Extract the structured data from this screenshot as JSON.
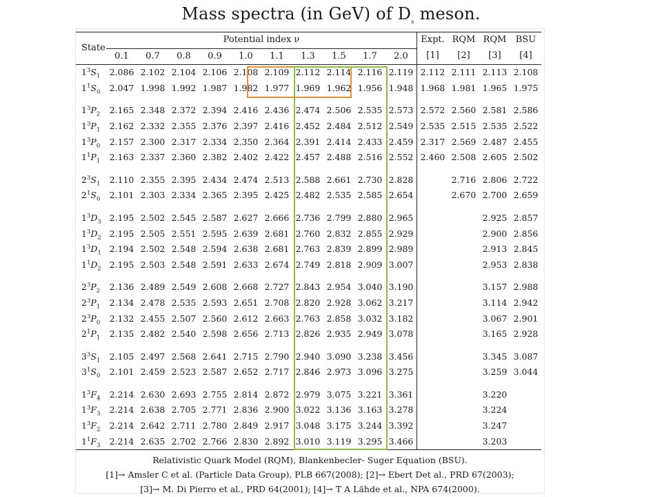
{
  "title": "Mass spectra (in GeV) of D",
  "title_sub": "s",
  "title_tail": " meson.",
  "header": {
    "state": "State",
    "potential": "Potential index ν",
    "nu_values": [
      "0.1",
      "0.7",
      "0.8",
      "0.9",
      "1.0",
      "1.1",
      "1.3",
      "1.5",
      "1.7",
      "2.0"
    ],
    "extra_cols": [
      {
        "top": "Expt.",
        "bot": "[1]"
      },
      {
        "top": "RQM",
        "bot": "[2]"
      },
      {
        "top": "RQM",
        "bot": "[3]"
      },
      {
        "top": "BSU",
        "bot": "[4]"
      }
    ]
  },
  "groups": [
    [
      {
        "n": "1",
        "s": "3",
        "l": "S",
        "j": "1",
        "v": [
          "2.086",
          "2.102",
          "2.104",
          "2.106",
          "2.108",
          "2.109",
          "2.112",
          "2.114",
          "2.116",
          "2.119",
          "2.112",
          "2.111",
          "2.113",
          "2.108"
        ]
      },
      {
        "n": "1",
        "s": "1",
        "l": "S",
        "j": "0",
        "v": [
          "2.047",
          "1.998",
          "1.992",
          "1.987",
          "1.982",
          "1.977",
          "1.969",
          "1.962",
          "1.956",
          "1.948",
          "1.968",
          "1.981",
          "1.965",
          "1.975"
        ]
      }
    ],
    [
      {
        "n": "1",
        "s": "3",
        "l": "P",
        "j": "2",
        "v": [
          "2.165",
          "2.348",
          "2.372",
          "2.394",
          "2.416",
          "2.436",
          "2.474",
          "2.506",
          "2.535",
          "2.573",
          "2.572",
          "2.560",
          "2.581",
          "2.586"
        ]
      },
      {
        "n": "1",
        "s": "3",
        "l": "P",
        "j": "1",
        "v": [
          "2.162",
          "2.332",
          "2.355",
          "2.376",
          "2.397",
          "2.416",
          "2.452",
          "2.484",
          "2.512",
          "2.549",
          "2.535",
          "2.515",
          "2.535",
          "2.522"
        ]
      },
      {
        "n": "1",
        "s": "3",
        "l": "P",
        "j": "0",
        "v": [
          "2.157",
          "2.300",
          "2.317",
          "2.334",
          "2.350",
          "2.364",
          "2.391",
          "2.414",
          "2.433",
          "2.459",
          "2.317",
          "2.569",
          "2.487",
          "2.455"
        ]
      },
      {
        "n": "1",
        "s": "1",
        "l": "P",
        "j": "1",
        "v": [
          "2.163",
          "2.337",
          "2.360",
          "2.382",
          "2.402",
          "2.422",
          "2.457",
          "2.488",
          "2.516",
          "2.552",
          "2.460",
          "2.508",
          "2.605",
          "2.502"
        ]
      }
    ],
    [
      {
        "n": "2",
        "s": "3",
        "l": "S",
        "j": "1",
        "v": [
          "2.110",
          "2.355",
          "2.395",
          "2.434",
          "2.474",
          "2.513",
          "2.588",
          "2.661",
          "2.730",
          "2.828",
          "",
          "2.716",
          "2.806",
          "2.722"
        ]
      },
      {
        "n": "2",
        "s": "1",
        "l": "S",
        "j": "0",
        "v": [
          "2.101",
          "2.303",
          "2.334",
          "2.365",
          "2.395",
          "2.425",
          "2.482",
          "2.535",
          "2.585",
          "2.654",
          "",
          "2.670",
          "2.700",
          "2.659"
        ]
      }
    ],
    [
      {
        "n": "1",
        "s": "3",
        "l": "D",
        "j": "3",
        "v": [
          "2.195",
          "2.502",
          "2.545",
          "2.587",
          "2.627",
          "2.666",
          "2.736",
          "2.799",
          "2.880",
          "2.965",
          "",
          "",
          "2.925",
          "2.857"
        ]
      },
      {
        "n": "1",
        "s": "3",
        "l": "D",
        "j": "2",
        "v": [
          "2.195",
          "2.505",
          "2.551",
          "2.595",
          "2.639",
          "2.681",
          "2.760",
          "2.832",
          "2.855",
          "2.929",
          "",
          "",
          "2.900",
          "2.856"
        ]
      },
      {
        "n": "1",
        "s": "3",
        "l": "D",
        "j": "1",
        "v": [
          "2.194",
          "2.502",
          "2.548",
          "2.594",
          "2.638",
          "2.681",
          "2.763",
          "2.839",
          "2.899",
          "2.989",
          "",
          "",
          "2.913",
          "2.845"
        ]
      },
      {
        "n": "1",
        "s": "1",
        "l": "D",
        "j": "2",
        "v": [
          "2.195",
          "2.503",
          "2.548",
          "2.591",
          "2.633",
          "2.674",
          "2.749",
          "2.818",
          "2.909",
          "3.007",
          "",
          "",
          "2.953",
          "2.838"
        ]
      }
    ],
    [
      {
        "n": "2",
        "s": "3",
        "l": "P",
        "j": "2",
        "v": [
          "2.136",
          "2.489",
          "2.549",
          "2.608",
          "2.668",
          "2.727",
          "2.843",
          "2.954",
          "3.040",
          "3.190",
          "",
          "",
          "3.157",
          "2.988"
        ]
      },
      {
        "n": "2",
        "s": "3",
        "l": "P",
        "j": "1",
        "v": [
          "2.134",
          "2.478",
          "2.535",
          "2.593",
          "2.651",
          "2.708",
          "2.820",
          "2.928",
          "3.062",
          "3.217",
          "",
          "",
          "3.114",
          "2.942"
        ]
      },
      {
        "n": "2",
        "s": "3",
        "l": "P",
        "j": "0",
        "v": [
          "2.132",
          "2.455",
          "2.507",
          "2.560",
          "2.612",
          "2.663",
          "2.763",
          "2.858",
          "3.032",
          "3.182",
          "",
          "",
          "3.067",
          "2.901"
        ]
      },
      {
        "n": "2",
        "s": "1",
        "l": "P",
        "j": "1",
        "v": [
          "2.135",
          "2.482",
          "2.540",
          "2.598",
          "2.656",
          "2.713",
          "2.826",
          "2.935",
          "2.949",
          "3.078",
          "",
          "",
          "3.165",
          "2.928"
        ]
      }
    ],
    [
      {
        "n": "3",
        "s": "3",
        "l": "S",
        "j": "1",
        "v": [
          "2.105",
          "2.497",
          "2.568",
          "2.641",
          "2.715",
          "2.790",
          "2.940",
          "3.090",
          "3.238",
          "3.456",
          "",
          "",
          "3.345",
          "3.087"
        ]
      },
      {
        "n": "3",
        "s": "1",
        "l": "S",
        "j": "0",
        "v": [
          "2.101",
          "2.459",
          "2.523",
          "2.587",
          "2.652",
          "2.717",
          "2.846",
          "2.973",
          "3.096",
          "3.275",
          "",
          "",
          "3.259",
          "3.044"
        ]
      }
    ],
    [
      {
        "n": "1",
        "s": "3",
        "l": "F",
        "j": "4",
        "v": [
          "2.214",
          "2.630",
          "2.693",
          "2.755",
          "2.814",
          "2.872",
          "2.979",
          "3.075",
          "3.221",
          "3.361",
          "",
          "",
          "3.220",
          ""
        ]
      },
      {
        "n": "1",
        "s": "3",
        "l": "F",
        "j": "3",
        "v": [
          "2.214",
          "2.638",
          "2.705",
          "2.771",
          "2.836",
          "2.900",
          "3.022",
          "3.136",
          "3.163",
          "3.278",
          "",
          "",
          "3.224",
          ""
        ]
      },
      {
        "n": "1",
        "s": "3",
        "l": "F",
        "j": "2",
        "v": [
          "2.214",
          "2.642",
          "2.711",
          "2.780",
          "2.849",
          "2.917",
          "3.048",
          "3.175",
          "3.244",
          "3.392",
          "",
          "",
          "3.247",
          ""
        ]
      },
      {
        "n": "1",
        "s": "1",
        "l": "F",
        "j": "3",
        "v": [
          "2.214",
          "2.635",
          "2.702",
          "2.766",
          "2.830",
          "2.892",
          "3.010",
          "3.119",
          "3.295",
          "3.466",
          "",
          "",
          "3.203",
          ""
        ]
      }
    ]
  ],
  "footer": [
    "Relativistic Quark Model (RQM), Blankenbecler- Suger Equation (BSU).",
    "[1]→ Amsler C et al. (Particle Data Group), PLB 667(2008); [2]→ Ebert Det al., PRD 67(2003);",
    "[3]→ M. Di Pierro et al., PRD 64(2001); [4]→ T A Lähde et al., NPA 674(2000)."
  ],
  "highlight_colors": {
    "orange": "#e8912d",
    "green": "#8cbf3f"
  }
}
